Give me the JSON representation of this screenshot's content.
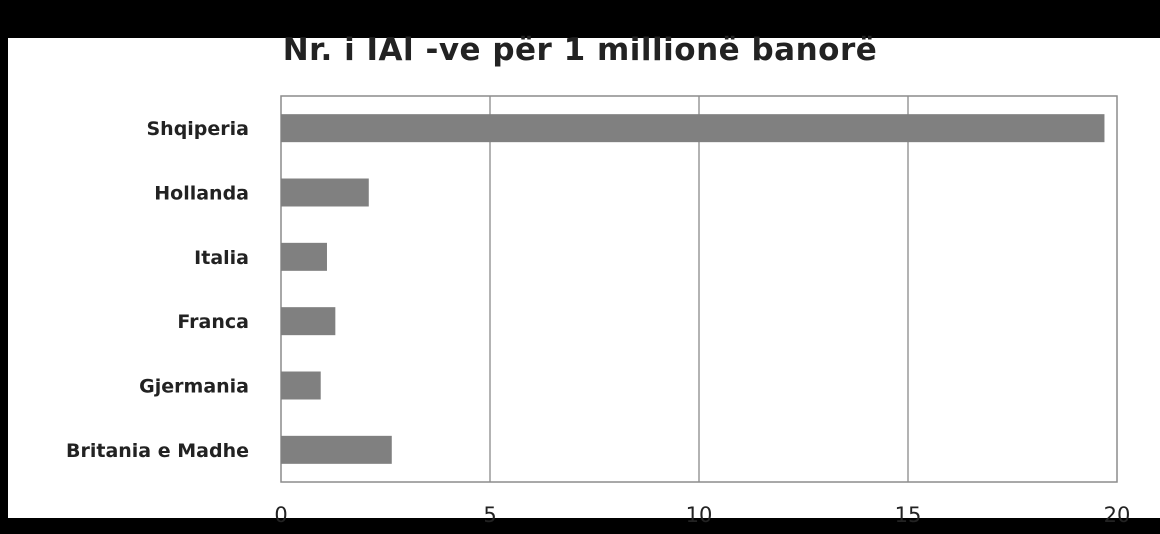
{
  "chart_data": {
    "type": "bar",
    "orientation": "horizontal",
    "title": "Nr. i IAl -ve për 1 millionë banorë",
    "categories": [
      "Shqiperia",
      "Hollanda",
      "Italia",
      "Franca",
      "Gjermania",
      "Britania e Madhe"
    ],
    "values": [
      19.7,
      2.1,
      1.1,
      1.3,
      0.95,
      2.65
    ],
    "xlim": [
      0,
      20
    ],
    "xticks": [
      0,
      5,
      10,
      15,
      20
    ],
    "xtick_labels": [
      "0",
      "5",
      "10",
      "15",
      "20"
    ],
    "grid": "vertical",
    "bar_color": "#808080"
  }
}
